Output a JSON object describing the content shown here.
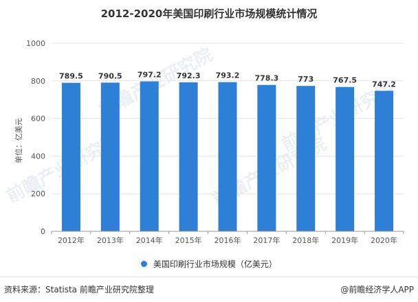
{
  "watermark": "前瞻产业研究院",
  "footer": {
    "source": "资料来源：Statista 前瞻产业研究院整理",
    "brand": "@前瞻经济学人APP"
  },
  "colors": {
    "bar": "#2e7fd6",
    "grid": "#e6e6e6",
    "axis": "#999999"
  },
  "chart_data": {
    "type": "bar",
    "title": "2012-2020年美国印刷行业市场规模统计情况",
    "ylabel": "单位：亿美元",
    "xlabel": "",
    "categories": [
      "2012年",
      "2013年",
      "2014年",
      "2015年",
      "2016年",
      "2017年",
      "2018年",
      "2019年",
      "2020年"
    ],
    "series": [
      {
        "name": "美国印刷行业市场规模（亿美元）",
        "values": [
          789.5,
          790.5,
          797.2,
          792.3,
          793.2,
          778.3,
          773,
          767.5,
          747.2
        ]
      }
    ],
    "data_labels": [
      "789.5",
      "790.5",
      "797.2",
      "792.3",
      "793.2",
      "778.3",
      "773",
      "767.5",
      "747.2"
    ],
    "ylim": [
      0,
      1000
    ],
    "yticks": [
      0,
      200,
      400,
      600,
      800,
      1000
    ],
    "grid": true,
    "legend": "bottom-center"
  }
}
